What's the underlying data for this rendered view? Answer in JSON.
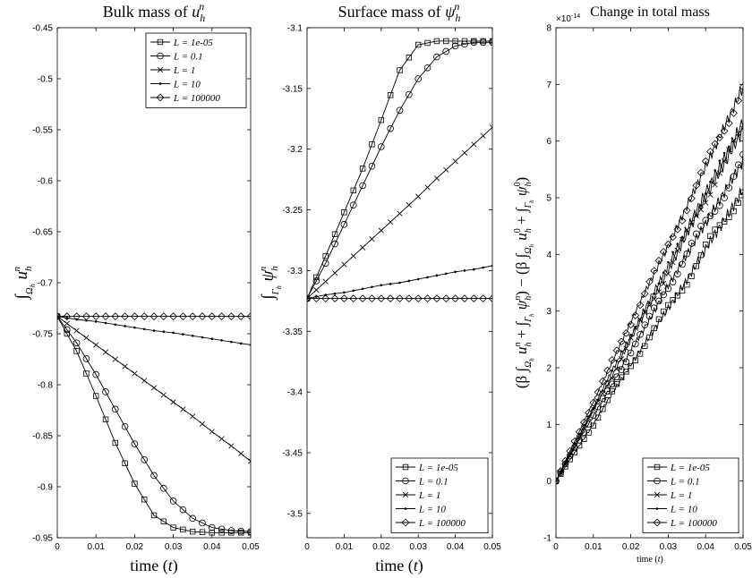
{
  "chart_data": [
    {
      "type": "line",
      "title": "Bulk mass of u_h^n",
      "xlabel": "time (t)",
      "ylabel": "∫_{Ω_h} u_h^n",
      "xlim": [
        0,
        0.05
      ],
      "ylim": [
        -0.95,
        -0.45
      ],
      "xticks": [
        "0",
        "0.01",
        "0.02",
        "0.03",
        "0.04",
        "0.05"
      ],
      "yticks": [
        "-0.95",
        "-0.9",
        "-0.85",
        "-0.8",
        "-0.75",
        "-0.7",
        "-0.65",
        "-0.6",
        "-0.55",
        "-0.5",
        "-0.45"
      ],
      "grid": false,
      "legend_position": "top-right",
      "x": [
        0,
        0.005,
        0.01,
        0.015,
        0.02,
        0.025,
        0.03,
        0.035,
        0.04,
        0.045,
        0.05
      ],
      "series": [
        {
          "name": "L = 1e-05",
          "marker": "square",
          "values": [
            -0.733,
            -0.767,
            -0.811,
            -0.857,
            -0.897,
            -0.928,
            -0.94,
            -0.944,
            -0.945,
            -0.945,
            -0.945
          ]
        },
        {
          "name": "L = 0.1",
          "marker": "circle",
          "values": [
            -0.733,
            -0.759,
            -0.79,
            -0.824,
            -0.858,
            -0.889,
            -0.914,
            -0.931,
            -0.94,
            -0.943,
            -0.944
          ]
        },
        {
          "name": "L = 1",
          "marker": "x",
          "values": [
            -0.733,
            -0.747,
            -0.761,
            -0.775,
            -0.789,
            -0.803,
            -0.817,
            -0.831,
            -0.846,
            -0.86,
            -0.875
          ]
        },
        {
          "name": "L = 10",
          "marker": "dot",
          "values": [
            -0.733,
            -0.736,
            -0.738,
            -0.741,
            -0.744,
            -0.747,
            -0.749,
            -0.752,
            -0.755,
            -0.758,
            -0.761
          ]
        },
        {
          "name": "L = 100000",
          "marker": "diamond",
          "values": [
            -0.733,
            -0.733,
            -0.733,
            -0.733,
            -0.733,
            -0.733,
            -0.733,
            -0.733,
            -0.733,
            -0.733,
            -0.733
          ]
        }
      ]
    },
    {
      "type": "line",
      "title": "Surface mass of ψ_h^n",
      "xlabel": "time (t)",
      "ylabel": "∫_{Γ_h} ψ_h^n",
      "xlim": [
        0,
        0.05
      ],
      "ylim": [
        -3.52,
        -3.1
      ],
      "xticks": [
        "0",
        "0.01",
        "0.02",
        "0.03",
        "0.04",
        "0.05"
      ],
      "yticks": [
        "-3.5",
        "-3.45",
        "-3.4",
        "-3.35",
        "-3.3",
        "-3.25",
        "-3.2",
        "-3.15",
        "-3.1"
      ],
      "grid": false,
      "legend_position": "bottom-right",
      "x": [
        0,
        0.005,
        0.01,
        0.015,
        0.02,
        0.025,
        0.03,
        0.035,
        0.04,
        0.045,
        0.05
      ],
      "series": [
        {
          "name": "L = 1e-05",
          "marker": "square",
          "values": [
            -3.323,
            -3.288,
            -3.252,
            -3.216,
            -3.176,
            -3.135,
            -3.114,
            -3.111,
            -3.111,
            -3.111,
            -3.111
          ]
        },
        {
          "name": "L = 0.1",
          "marker": "circle",
          "values": [
            -3.323,
            -3.294,
            -3.262,
            -3.23,
            -3.198,
            -3.168,
            -3.142,
            -3.124,
            -3.115,
            -3.112,
            -3.112
          ]
        },
        {
          "name": "L = 1",
          "marker": "x",
          "values": [
            -3.323,
            -3.309,
            -3.295,
            -3.281,
            -3.267,
            -3.253,
            -3.239,
            -3.224,
            -3.21,
            -3.196,
            -3.182
          ]
        },
        {
          "name": "L = 10",
          "marker": "dot",
          "values": [
            -3.323,
            -3.32,
            -3.318,
            -3.315,
            -3.312,
            -3.31,
            -3.307,
            -3.304,
            -3.301,
            -3.299,
            -3.296
          ]
        },
        {
          "name": "L = 100000",
          "marker": "diamond",
          "values": [
            -3.323,
            -3.323,
            -3.323,
            -3.323,
            -3.323,
            -3.323,
            -3.323,
            -3.323,
            -3.323,
            -3.323,
            -3.323
          ]
        }
      ]
    },
    {
      "type": "line",
      "title": "Change in total mass",
      "xlabel": "time (t)",
      "ylabel": "(β ∫_{Ω_h} u_h^n + ∫_{Γ_h} ψ_h^n) − (β ∫_{Ω_h} u_h^0 + ∫_{Γ_h} ψ_h^0)",
      "exponent_label": "×10⁻¹⁴",
      "xlim": [
        0,
        0.05
      ],
      "ylim": [
        -1,
        8
      ],
      "xticks": [
        "0",
        "0.01",
        "0.02",
        "0.03",
        "0.04",
        "0.05"
      ],
      "yticks": [
        "-1",
        "0",
        "1",
        "2",
        "3",
        "4",
        "5",
        "6",
        "7",
        "8"
      ],
      "grid": false,
      "legend_position": "bottom-right",
      "x": [
        0,
        0.005,
        0.01,
        0.015,
        0.02,
        0.025,
        0.03,
        0.035,
        0.04,
        0.045,
        0.05
      ],
      "series": [
        {
          "name": "L = 1e-05",
          "marker": "square",
          "values": [
            0,
            0.5,
            1.0,
            1.55,
            2.05,
            2.55,
            3.05,
            3.55,
            4.1,
            4.6,
            5.15
          ]
        },
        {
          "name": "L = 0.1",
          "marker": "circle",
          "values": [
            0,
            0.6,
            1.15,
            1.7,
            2.3,
            2.85,
            3.45,
            4.0,
            4.55,
            5.1,
            5.65
          ]
        },
        {
          "name": "L = 1",
          "marker": "x",
          "values": [
            0,
            0.6,
            1.25,
            1.85,
            2.5,
            3.1,
            3.7,
            4.35,
            5.0,
            5.6,
            6.2
          ]
        },
        {
          "name": "L = 10",
          "marker": "dot",
          "values": [
            0,
            0.65,
            1.3,
            1.95,
            2.55,
            3.2,
            3.8,
            4.45,
            5.1,
            5.7,
            6.35
          ]
        },
        {
          "name": "L = 100000",
          "marker": "diamond",
          "values": [
            0,
            0.7,
            1.4,
            2.1,
            2.8,
            3.5,
            4.15,
            4.85,
            5.55,
            6.25,
            6.95
          ]
        }
      ]
    }
  ]
}
